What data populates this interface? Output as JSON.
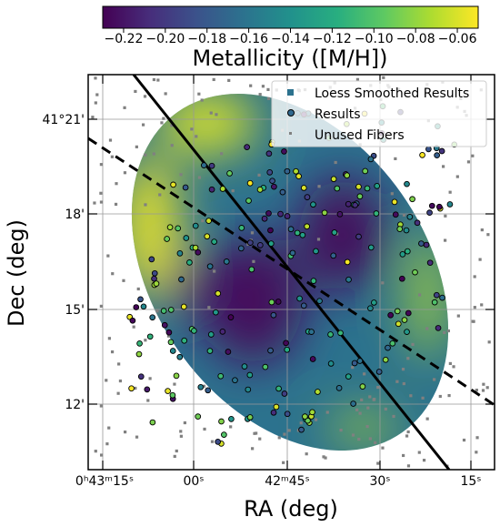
{
  "chart_data": {
    "type": "scatter",
    "colorbar": {
      "label": "Metallicity ([M/H])",
      "colormap": "viridis",
      "range": [
        -0.23,
        -0.05
      ],
      "ticks": [
        -0.22,
        -0.2,
        -0.18,
        -0.16,
        -0.14,
        -0.12,
        -0.1,
        -0.08,
        -0.06
      ],
      "tick_labels": [
        "−0.22",
        "−0.20",
        "−0.18",
        "−0.16",
        "−0.14",
        "−0.12",
        "−0.10",
        "−0.08",
        "−0.06"
      ]
    },
    "xlabel": "RA (deg)",
    "ylabel": "Dec (deg)",
    "xticks": [
      {
        "label": "0ʰ43ᵐ15ˢ",
        "value": "0h43m15s"
      },
      {
        "label": "00ˢ",
        "value": "0h43m00s"
      },
      {
        "label": "42ᵐ45ˢ",
        "value": "0h42m45s"
      },
      {
        "label": "30ˢ",
        "value": "0h42m30s"
      },
      {
        "label": "15ˢ",
        "value": "0h42m15s"
      }
    ],
    "yticks": [
      {
        "label": "41°21'",
        "value": "41d21m"
      },
      {
        "label": "18'",
        "value": "41d18m"
      },
      {
        "label": "15'",
        "value": "41d15m"
      },
      {
        "label": "12'",
        "value": "41d12m"
      }
    ],
    "grid": true,
    "legend": {
      "placement": "top-right",
      "entries": [
        "Loess Smoothed Results",
        "Results",
        "Unused Fibers"
      ]
    },
    "lines": [
      {
        "style": "solid",
        "color": "#000000",
        "description_value": "major axis"
      },
      {
        "style": "dashed",
        "color": "#000000",
        "description_value": "minor axis"
      }
    ],
    "smoothed_field": {
      "center_value": -0.16,
      "low_regions": [
        {
          "value": -0.225
        },
        {
          "value": -0.225
        },
        {
          "value": -0.215
        }
      ],
      "high_regions": [
        {
          "value": -0.055
        },
        {
          "value": -0.06
        },
        {
          "value": -0.07
        },
        {
          "value": -0.07
        }
      ]
    },
    "results_points_value_range": [
      -0.23,
      -0.05
    ],
    "unused_fiber_color": "#808080"
  }
}
